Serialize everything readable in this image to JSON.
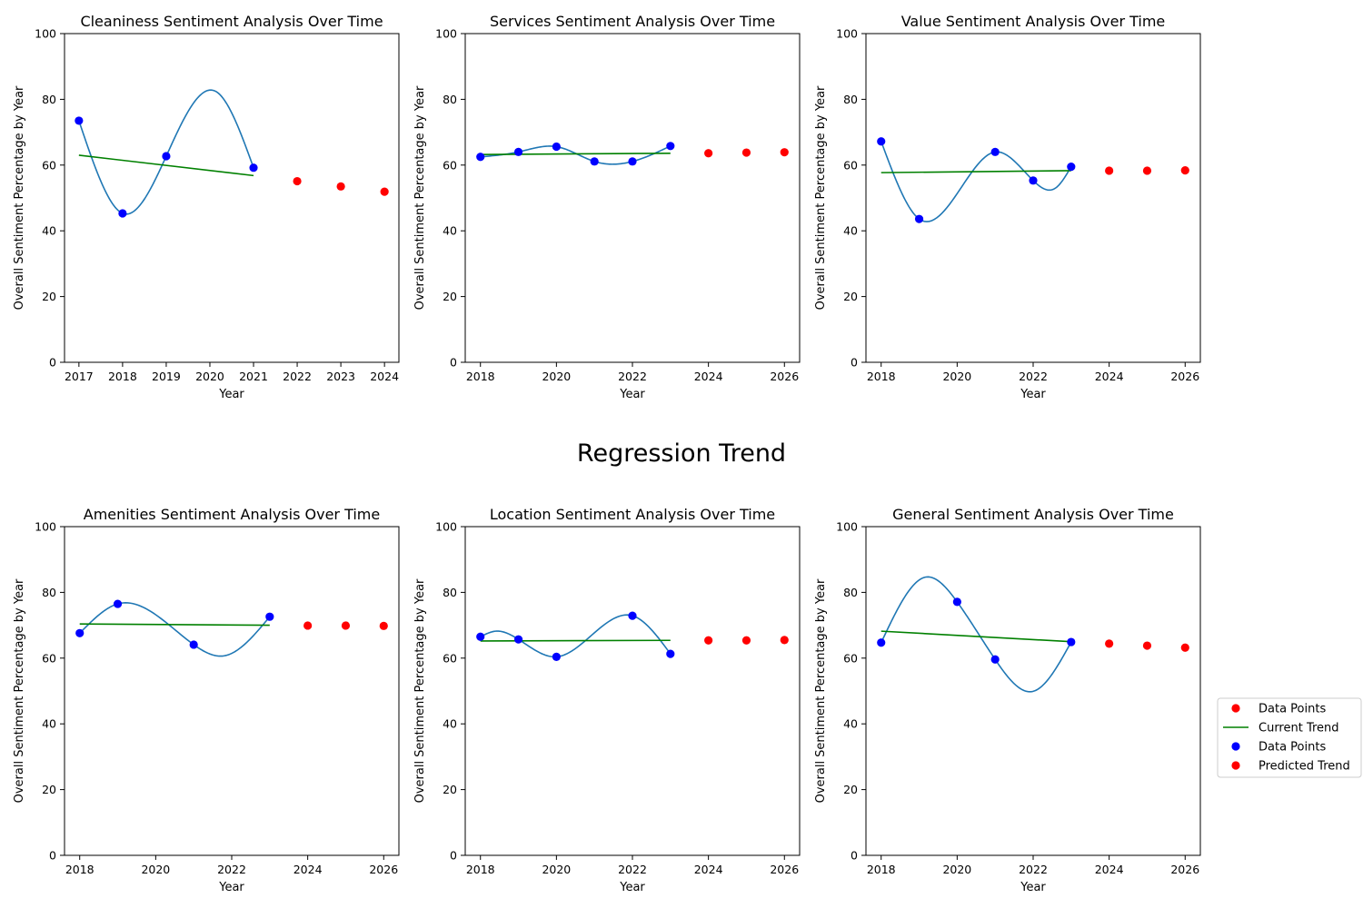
{
  "figure": {
    "title": "Regression Trend",
    "legend": {
      "placement": "right-center",
      "entries": [
        {
          "label": "Data Points",
          "kind": "marker",
          "color": "#ff0000"
        },
        {
          "label": "Current Trend",
          "kind": "line",
          "color": "#008000"
        },
        {
          "label": "Data Points",
          "kind": "marker",
          "color": "#0000ff"
        },
        {
          "label": "Predicted Trend",
          "kind": "marker",
          "color": "#ff0000"
        }
      ]
    }
  },
  "colors": {
    "actual": "#0000ff",
    "predicted": "#ff0000",
    "trend": "#008000",
    "spline": "#1f77b4"
  },
  "chart_data": [
    {
      "type": "scatter",
      "title": "Cleaniness Sentiment Analysis Over Time",
      "xlabel": "Year",
      "ylabel": "Overall Sentiment Percentage by Year",
      "xlim": [
        2016.67,
        2024.33
      ],
      "ylim": [
        0,
        100
      ],
      "xticks": [
        2017,
        2018,
        2019,
        2020,
        2021,
        2022,
        2023,
        2024
      ],
      "yticks": [
        0,
        20,
        40,
        60,
        80,
        100
      ],
      "grid": false,
      "actual": {
        "x": [
          2017,
          2018,
          2019,
          2021
        ],
        "y": [
          73.5,
          45.3,
          62.7,
          59.2
        ]
      },
      "trend": {
        "x": [
          2017,
          2021
        ],
        "y": [
          63.0,
          56.8
        ]
      },
      "predicted": {
        "x": [
          2022,
          2023,
          2024
        ],
        "y": [
          55.1,
          53.5,
          51.9
        ]
      },
      "spline": {
        "x": [
          2017,
          2018,
          2019,
          2020.15,
          2021
        ],
        "y": [
          73.5,
          45.3,
          62.7,
          82.3,
          59.2
        ]
      }
    },
    {
      "type": "scatter",
      "title": "Services Sentiment Analysis Over Time",
      "xlabel": "Year",
      "ylabel": "Overall Sentiment Percentage by Year",
      "xlim": [
        2017.6,
        2026.4
      ],
      "ylim": [
        0,
        100
      ],
      "xticks": [
        2018,
        2020,
        2022,
        2024,
        2026
      ],
      "yticks": [
        0,
        20,
        40,
        60,
        80,
        100
      ],
      "grid": false,
      "actual": {
        "x": [
          2018,
          2019,
          2020,
          2021,
          2022,
          2023
        ],
        "y": [
          62.5,
          64.0,
          65.6,
          61.1,
          61.1,
          65.8
        ]
      },
      "trend": {
        "x": [
          2018,
          2023
        ],
        "y": [
          63.2,
          63.6
        ]
      },
      "predicted": {
        "x": [
          2024,
          2025,
          2026
        ],
        "y": [
          63.6,
          63.8,
          63.9
        ]
      },
      "spline": {
        "x": [
          2018,
          2019,
          2020,
          2021,
          2022,
          2023
        ],
        "y": [
          62.5,
          64.0,
          65.6,
          61.1,
          61.1,
          65.8
        ]
      }
    },
    {
      "type": "scatter",
      "title": "Value Sentiment Analysis Over Time",
      "xlabel": "Year",
      "ylabel": "Overall Sentiment Percentage by Year",
      "xlim": [
        2017.6,
        2026.4
      ],
      "ylim": [
        0,
        100
      ],
      "xticks": [
        2018,
        2020,
        2022,
        2024,
        2026
      ],
      "yticks": [
        0,
        20,
        40,
        60,
        80,
        100
      ],
      "grid": false,
      "actual": {
        "x": [
          2018,
          2019,
          2021,
          2022,
          2023
        ],
        "y": [
          67.2,
          43.6,
          64.0,
          55.3,
          59.5
        ]
      },
      "trend": {
        "x": [
          2018,
          2023
        ],
        "y": [
          57.7,
          58.3
        ]
      },
      "predicted": {
        "x": [
          2024,
          2025,
          2026
        ],
        "y": [
          58.3,
          58.3,
          58.4
        ]
      },
      "spline": {
        "x": [
          2018,
          2019,
          2021,
          2022,
          2022.6,
          2023
        ],
        "y": [
          67.2,
          43.6,
          64.0,
          55.3,
          53.1,
          59.5
        ]
      }
    },
    {
      "type": "scatter",
      "title": "Amenities Sentiment Analysis Over Time",
      "xlabel": "Year",
      "ylabel": "Overall Sentiment Percentage by Year",
      "xlim": [
        2017.6,
        2026.4
      ],
      "ylim": [
        0,
        100
      ],
      "xticks": [
        2018,
        2020,
        2022,
        2024,
        2026
      ],
      "yticks": [
        0,
        20,
        40,
        60,
        80,
        100
      ],
      "grid": false,
      "actual": {
        "x": [
          2018,
          2019,
          2021,
          2023
        ],
        "y": [
          67.6,
          76.5,
          64.1,
          72.6
        ]
      },
      "trend": {
        "x": [
          2018,
          2023
        ],
        "y": [
          70.4,
          70.0
        ]
      },
      "predicted": {
        "x": [
          2024,
          2025,
          2026
        ],
        "y": [
          69.9,
          69.9,
          69.8
        ]
      },
      "spline": {
        "x": [
          2018,
          2019,
          2021,
          2021.8,
          2023
        ],
        "y": [
          67.6,
          76.5,
          64.1,
          60.7,
          72.6
        ]
      }
    },
    {
      "type": "scatter",
      "title": "Location Sentiment Analysis Over Time",
      "xlabel": "Year",
      "ylabel": "Overall Sentiment Percentage by Year",
      "xlim": [
        2017.6,
        2026.4
      ],
      "ylim": [
        0,
        100
      ],
      "xticks": [
        2018,
        2020,
        2022,
        2024,
        2026
      ],
      "yticks": [
        0,
        20,
        40,
        60,
        80,
        100
      ],
      "grid": false,
      "actual": {
        "x": [
          2018,
          2019,
          2020,
          2022,
          2023
        ],
        "y": [
          66.5,
          65.7,
          60.4,
          72.9,
          61.3
        ]
      },
      "trend": {
        "x": [
          2018,
          2023
        ],
        "y": [
          65.2,
          65.4
        ]
      },
      "predicted": {
        "x": [
          2024,
          2025,
          2026
        ],
        "y": [
          65.4,
          65.4,
          65.5
        ]
      },
      "spline": {
        "x": [
          2018,
          2018.4,
          2019,
          2020,
          2022,
          2023
        ],
        "y": [
          66.5,
          68.2,
          65.7,
          60.4,
          72.9,
          61.3
        ]
      }
    },
    {
      "type": "scatter",
      "title": "General Sentiment Analysis Over Time",
      "xlabel": "Year",
      "ylabel": "Overall Sentiment Percentage by Year",
      "xlim": [
        2017.6,
        2026.4
      ],
      "ylim": [
        0,
        100
      ],
      "xticks": [
        2018,
        2020,
        2022,
        2024,
        2026
      ],
      "yticks": [
        0,
        20,
        40,
        60,
        80,
        100
      ],
      "grid": false,
      "actual": {
        "x": [
          2018,
          2020,
          2021,
          2023
        ],
        "y": [
          64.7,
          77.1,
          59.6,
          64.9
        ]
      },
      "trend": {
        "x": [
          2018,
          2023
        ],
        "y": [
          68.2,
          65.0
        ]
      },
      "predicted": {
        "x": [
          2024,
          2025,
          2026
        ],
        "y": [
          64.4,
          63.8,
          63.2
        ]
      },
      "spline": {
        "x": [
          2018,
          2019.15,
          2020,
          2021,
          2022,
          2023
        ],
        "y": [
          64.7,
          84.6,
          77.1,
          59.6,
          49.9,
          64.9
        ]
      }
    }
  ]
}
